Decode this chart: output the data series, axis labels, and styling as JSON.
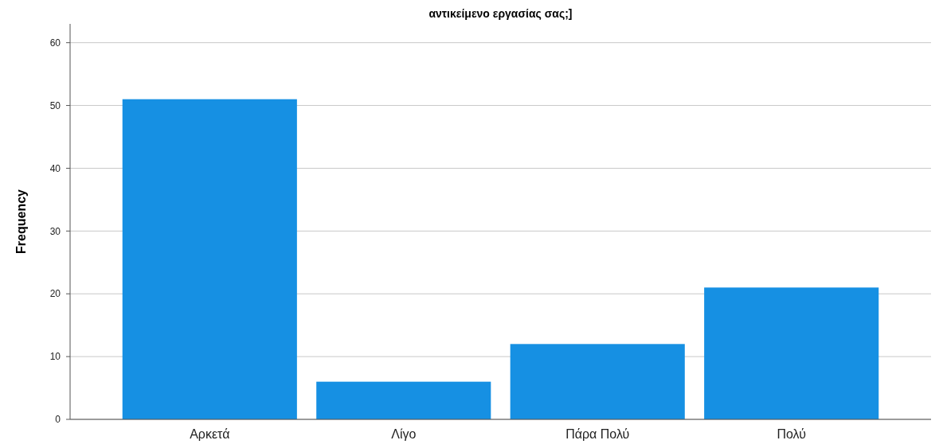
{
  "chart_data": {
    "type": "bar",
    "title": "αντικείμενο εργασίας σας;]",
    "ylabel": "Frequency",
    "categories": [
      "Αρκετά",
      "Λίγο",
      "Πάρα Πολύ",
      "Πολύ"
    ],
    "values": [
      51,
      6,
      12,
      21
    ],
    "color": "#1690e3",
    "ylim": [
      0,
      63
    ],
    "yticks": [
      0,
      10,
      20,
      30,
      40,
      50,
      60
    ],
    "grid": "y"
  }
}
